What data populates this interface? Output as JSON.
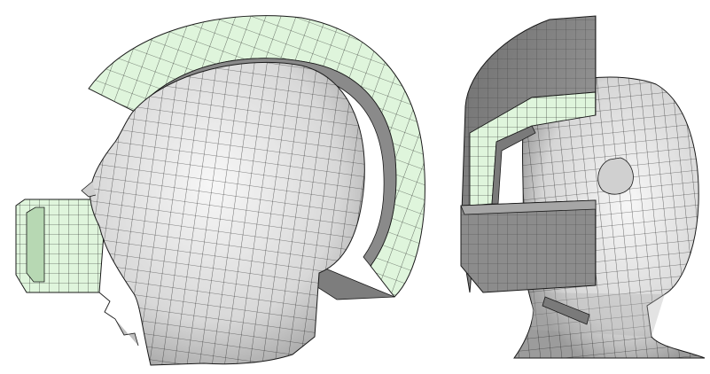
{
  "figure": {
    "views": [
      {
        "name": "side-view",
        "parts": [
          "head-mesh",
          "helmet-shell-section",
          "chin-guard-section"
        ]
      },
      {
        "name": "front-view",
        "parts": [
          "head-mesh",
          "helmet-shell-section",
          "visor-section",
          "chin-guard-section"
        ]
      }
    ],
    "colors": {
      "background": "#ffffff",
      "head_skin": "#e6e6e6",
      "head_shade": "#9a9a9a",
      "helmet_dark": "#7a7a7a",
      "helmet_light": "#bdbdbd",
      "padding_green": "#dff5dc",
      "mesh_line": "#1a1a1a"
    }
  }
}
